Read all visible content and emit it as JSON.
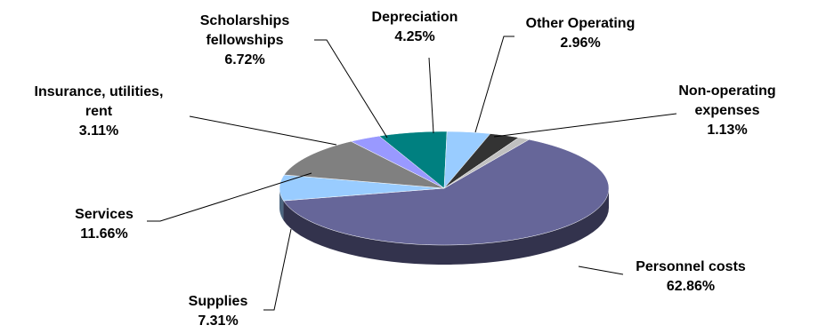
{
  "chart_data": {
    "type": "pie",
    "title": "",
    "legend": "none",
    "slices": [
      {
        "label_lines": [
          "Personnel costs"
        ],
        "value_label": "62.86%",
        "value": 62.86,
        "color": "#666699"
      },
      {
        "label_lines": [
          "Supplies"
        ],
        "value_label": "7.31%",
        "value": 7.31,
        "color": "#99CCFF"
      },
      {
        "label_lines": [
          "Services"
        ],
        "value_label": "11.66%",
        "value": 11.66,
        "color": "#808080"
      },
      {
        "label_lines": [
          "Insurance, utilities,",
          "rent"
        ],
        "value_label": "3.11%",
        "value": 3.11,
        "color": "#9999FF"
      },
      {
        "label_lines": [
          "Scholarships",
          "fellowships"
        ],
        "value_label": "6.72%",
        "value": 6.72,
        "color": "#008080"
      },
      {
        "label_lines": [
          "Depreciation"
        ],
        "value_label": "4.25%",
        "value": 4.25,
        "color": "#99CCFF"
      },
      {
        "label_lines": [
          "Other Operating"
        ],
        "value_label": "2.96%",
        "value": 2.96,
        "color": "#333333"
      },
      {
        "label_lines": [
          "Non-operating",
          "expenses"
        ],
        "value_label": "1.13%",
        "value": 1.13,
        "color": "#C0C0C0"
      }
    ]
  }
}
